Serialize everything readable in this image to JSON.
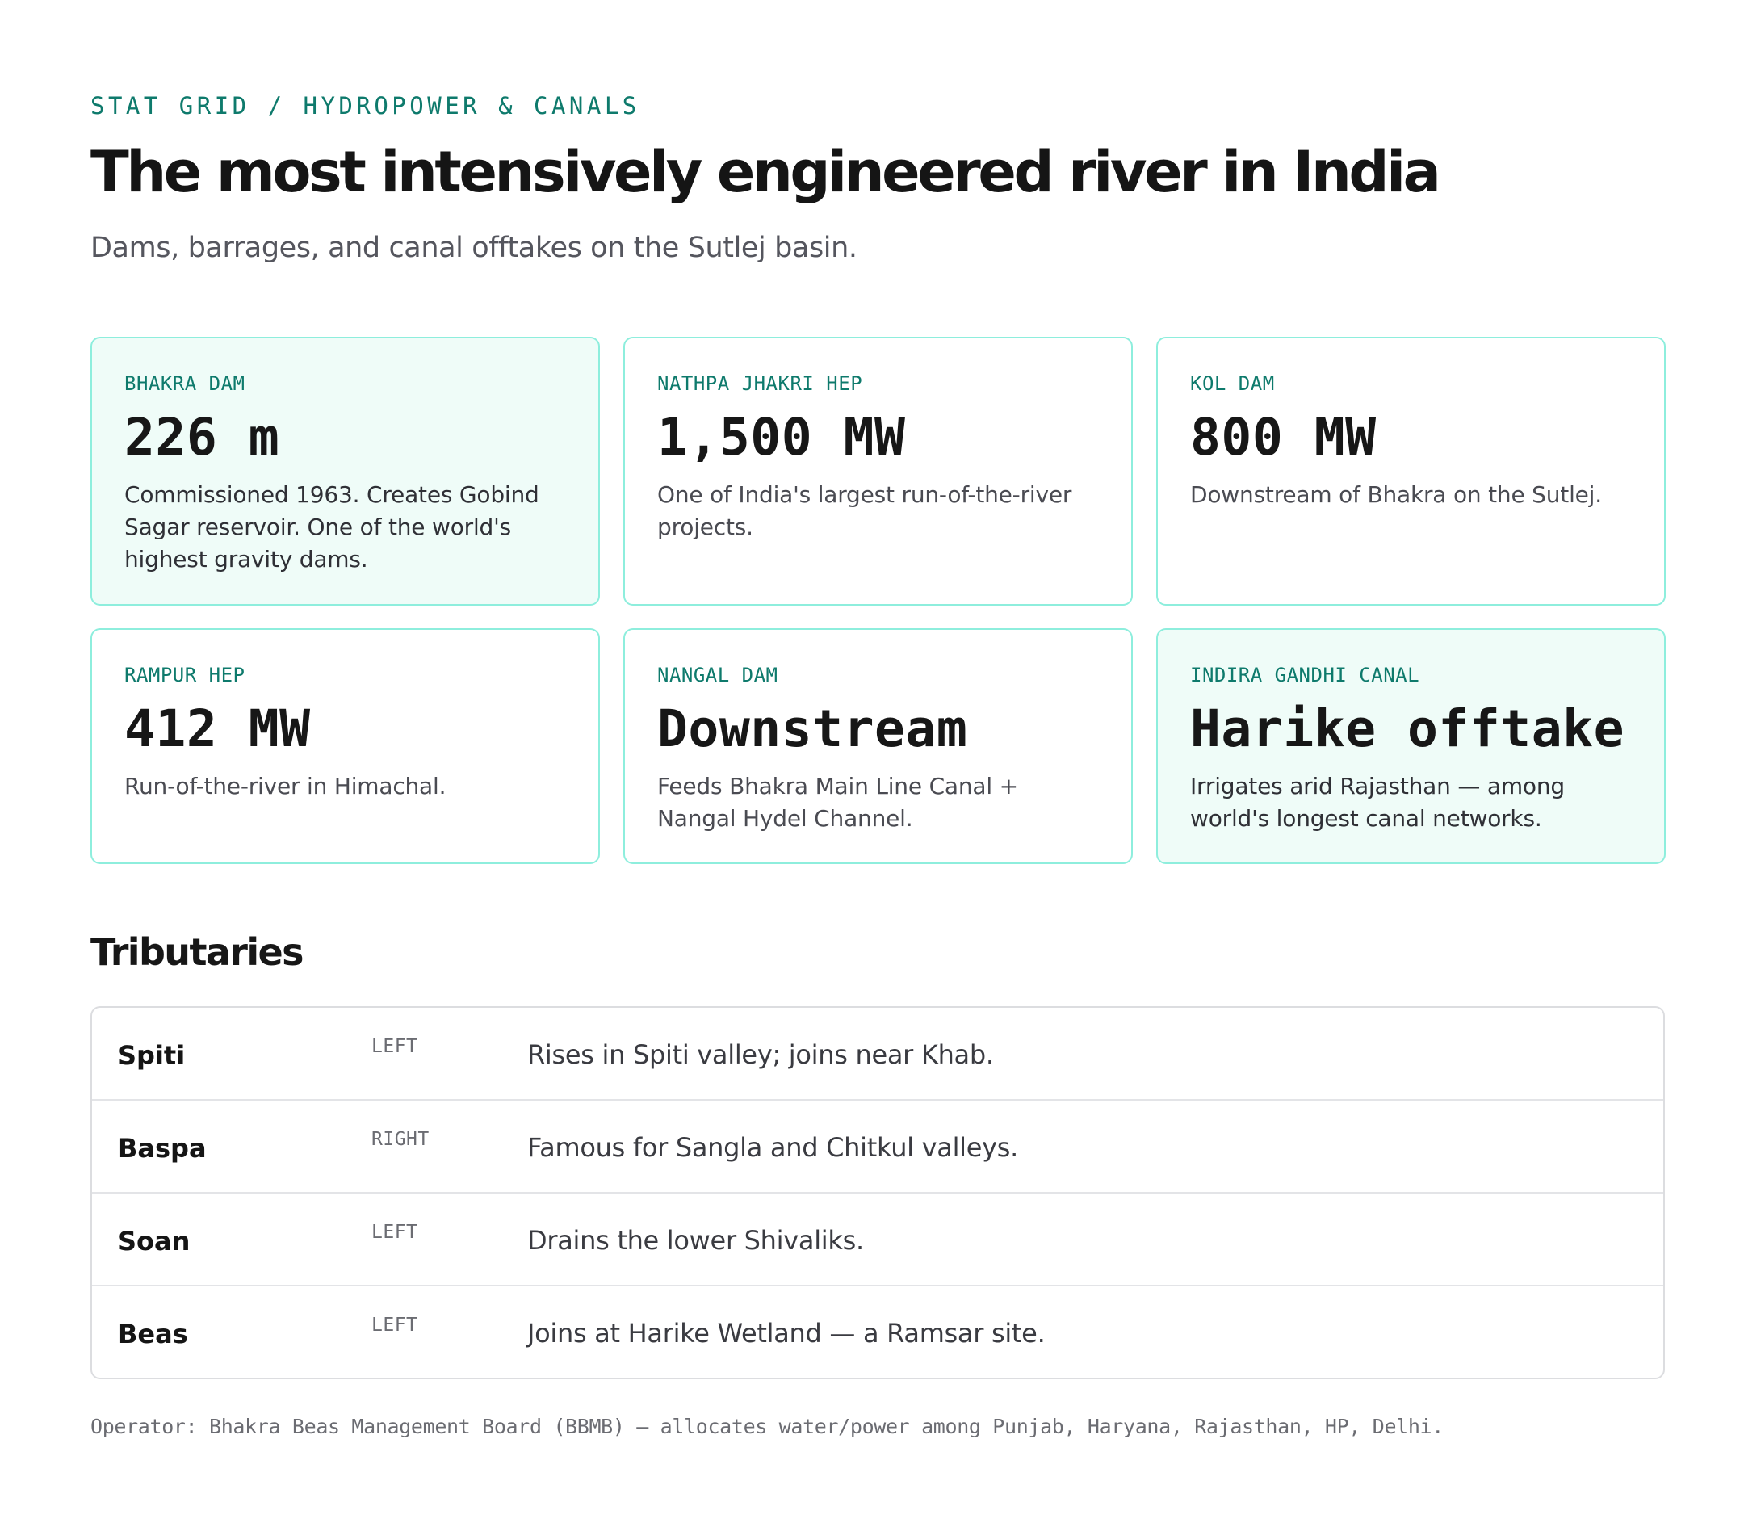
{
  "header": {
    "eyebrow": "STAT GRID / HYDROPOWER & CANALS",
    "title": "The most intensively engineered river in India",
    "subtitle": "Dams, barrages, and canal offtakes on the Sutlej basin."
  },
  "stats": [
    {
      "label": "BHAKRA DAM",
      "value": "226 m",
      "desc": "Commissioned 1963. Creates Gobind Sagar reservoir. One of the world's highest gravity dams.",
      "highlight": true
    },
    {
      "label": "NATHPA JHAKRI HEP",
      "value": "1,500 MW",
      "desc": "One of India's largest run-of-the-river projects.",
      "highlight": false
    },
    {
      "label": "KOL DAM",
      "value": "800 MW",
      "desc": "Downstream of Bhakra on the Sutlej.",
      "highlight": false
    },
    {
      "label": "RAMPUR HEP",
      "value": "412 MW",
      "desc": "Run-of-the-river in Himachal.",
      "highlight": false
    },
    {
      "label": "NANGAL DAM",
      "value": "Downstream",
      "desc": "Feeds Bhakra Main Line Canal + Nangal Hydel Channel.",
      "highlight": false
    },
    {
      "label": "INDIRA GANDHI CANAL",
      "value": "Harike offtake",
      "desc": "Irrigates arid Rajasthan — among world's longest canal networks.",
      "highlight": true
    }
  ],
  "tributaries": {
    "title": "Tributaries",
    "rows": [
      {
        "name": "Spiti",
        "bank": "LEFT",
        "desc": "Rises in Spiti valley; joins near Khab."
      },
      {
        "name": "Baspa",
        "bank": "RIGHT",
        "desc": "Famous for Sangla and Chitkul valleys."
      },
      {
        "name": "Soan",
        "bank": "LEFT",
        "desc": "Drains the lower Shivaliks."
      },
      {
        "name": "Beas",
        "bank": "LEFT",
        "desc": "Joins at Harike Wetland — a Ramsar site."
      }
    ]
  },
  "footnote": "Operator: Bhakra Beas Management Board (BBMB) — allocates water/power among Punjab, Haryana, Rajasthan, HP, Delhi.",
  "colors": {
    "accent": "#0e7a6c",
    "card_border": "#8eeedd",
    "card_highlight_bg": "#effcf8"
  }
}
